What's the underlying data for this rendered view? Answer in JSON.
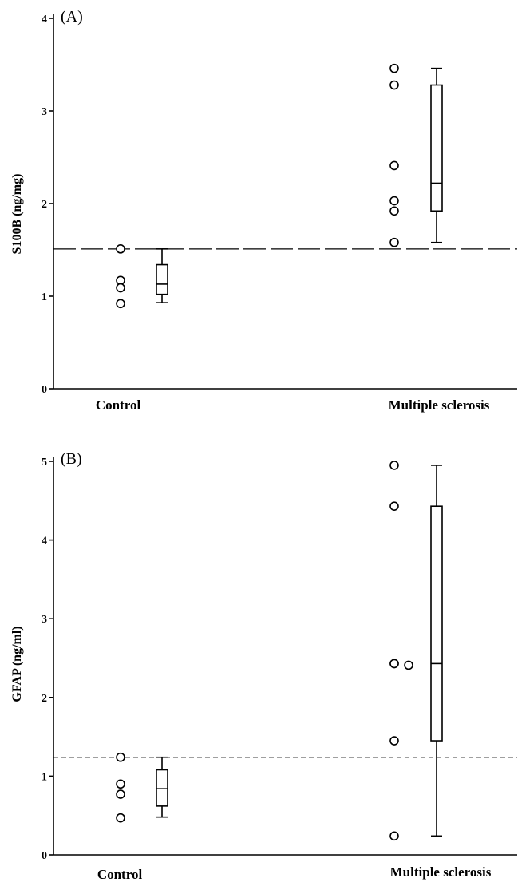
{
  "chart_data": [
    {
      "type": "boxplot",
      "panel_label": "(A)",
      "ylabel": "S100B (ng/mg)",
      "ylim": [
        0,
        4
      ],
      "yticks": [
        "0",
        "1",
        "2",
        "3",
        "4"
      ],
      "categories": [
        "Control",
        "Multiple sclerosis"
      ],
      "reference_line": 1.51,
      "groups": [
        {
          "name": "Control",
          "points": [
            1.51,
            1.17,
            1.09,
            0.92
          ],
          "box": {
            "min": 0.93,
            "q1": 1.02,
            "median": 1.13,
            "q3": 1.34,
            "max": 1.51
          }
        },
        {
          "name": "Multiple sclerosis",
          "points": [
            3.46,
            3.28,
            2.41,
            2.03,
            1.92,
            1.58
          ],
          "box": {
            "min": 1.58,
            "q1": 1.92,
            "median": 2.22,
            "q3": 3.28,
            "max": 3.46
          }
        }
      ]
    },
    {
      "type": "boxplot",
      "panel_label": "(B)",
      "ylabel": "GFAP (ng/ml)",
      "ylim": [
        0,
        5
      ],
      "yticks": [
        "0",
        "1",
        "2",
        "3",
        "4",
        "5"
      ],
      "categories": [
        "Control",
        "Multiple sclerosis"
      ],
      "reference_line": 1.24,
      "groups": [
        {
          "name": "Control",
          "points": [
            1.24,
            0.9,
            0.77,
            0.47
          ],
          "box": {
            "min": 0.48,
            "q1": 0.62,
            "median": 0.84,
            "q3": 1.08,
            "max": 1.24
          }
        },
        {
          "name": "Multiple sclerosis",
          "points": [
            4.95,
            4.43,
            2.43,
            2.43,
            2.41,
            1.45,
            0.24
          ],
          "box": {
            "min": 0.24,
            "q1": 1.45,
            "median": 2.43,
            "q3": 4.43,
            "max": 4.95
          }
        }
      ]
    }
  ]
}
